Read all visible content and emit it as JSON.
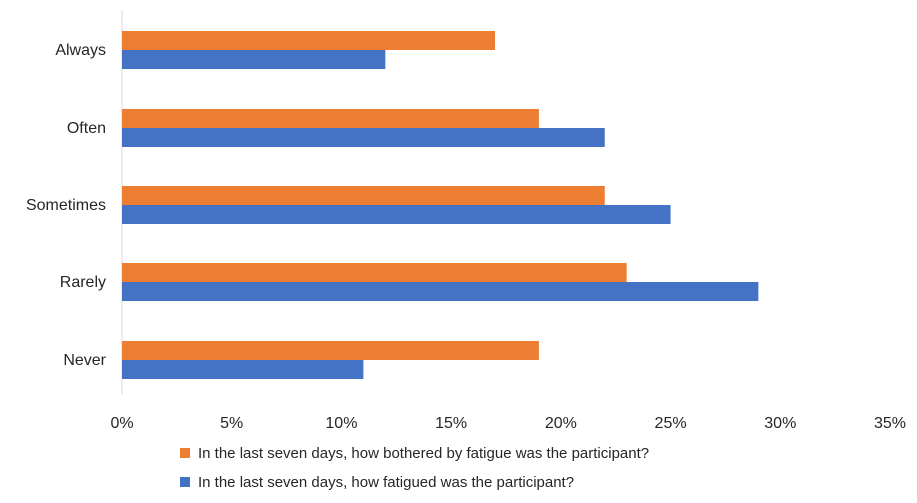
{
  "chart_data": {
    "type": "bar",
    "orientation": "horizontal",
    "categories": [
      "Always",
      "Often",
      "Sometimes",
      "Rarely",
      "Never"
    ],
    "series": [
      {
        "name": "In the last seven days, how bothered by fatigue was the participant?",
        "color": "#ED7D31",
        "values": [
          17,
          19,
          22,
          23,
          19
        ]
      },
      {
        "name": "In the last seven days, how fatigued was the participant?",
        "color": "#4472C4",
        "values": [
          12,
          22,
          25,
          29,
          11
        ]
      }
    ],
    "xticks": [
      "0%",
      "5%",
      "10%",
      "15%",
      "20%",
      "25%",
      "30%",
      "35%"
    ],
    "xlim": [
      0,
      35
    ],
    "unit": "%",
    "grid": false,
    "legend_position": "bottom",
    "title": "",
    "xlabel": "",
    "ylabel": ""
  }
}
